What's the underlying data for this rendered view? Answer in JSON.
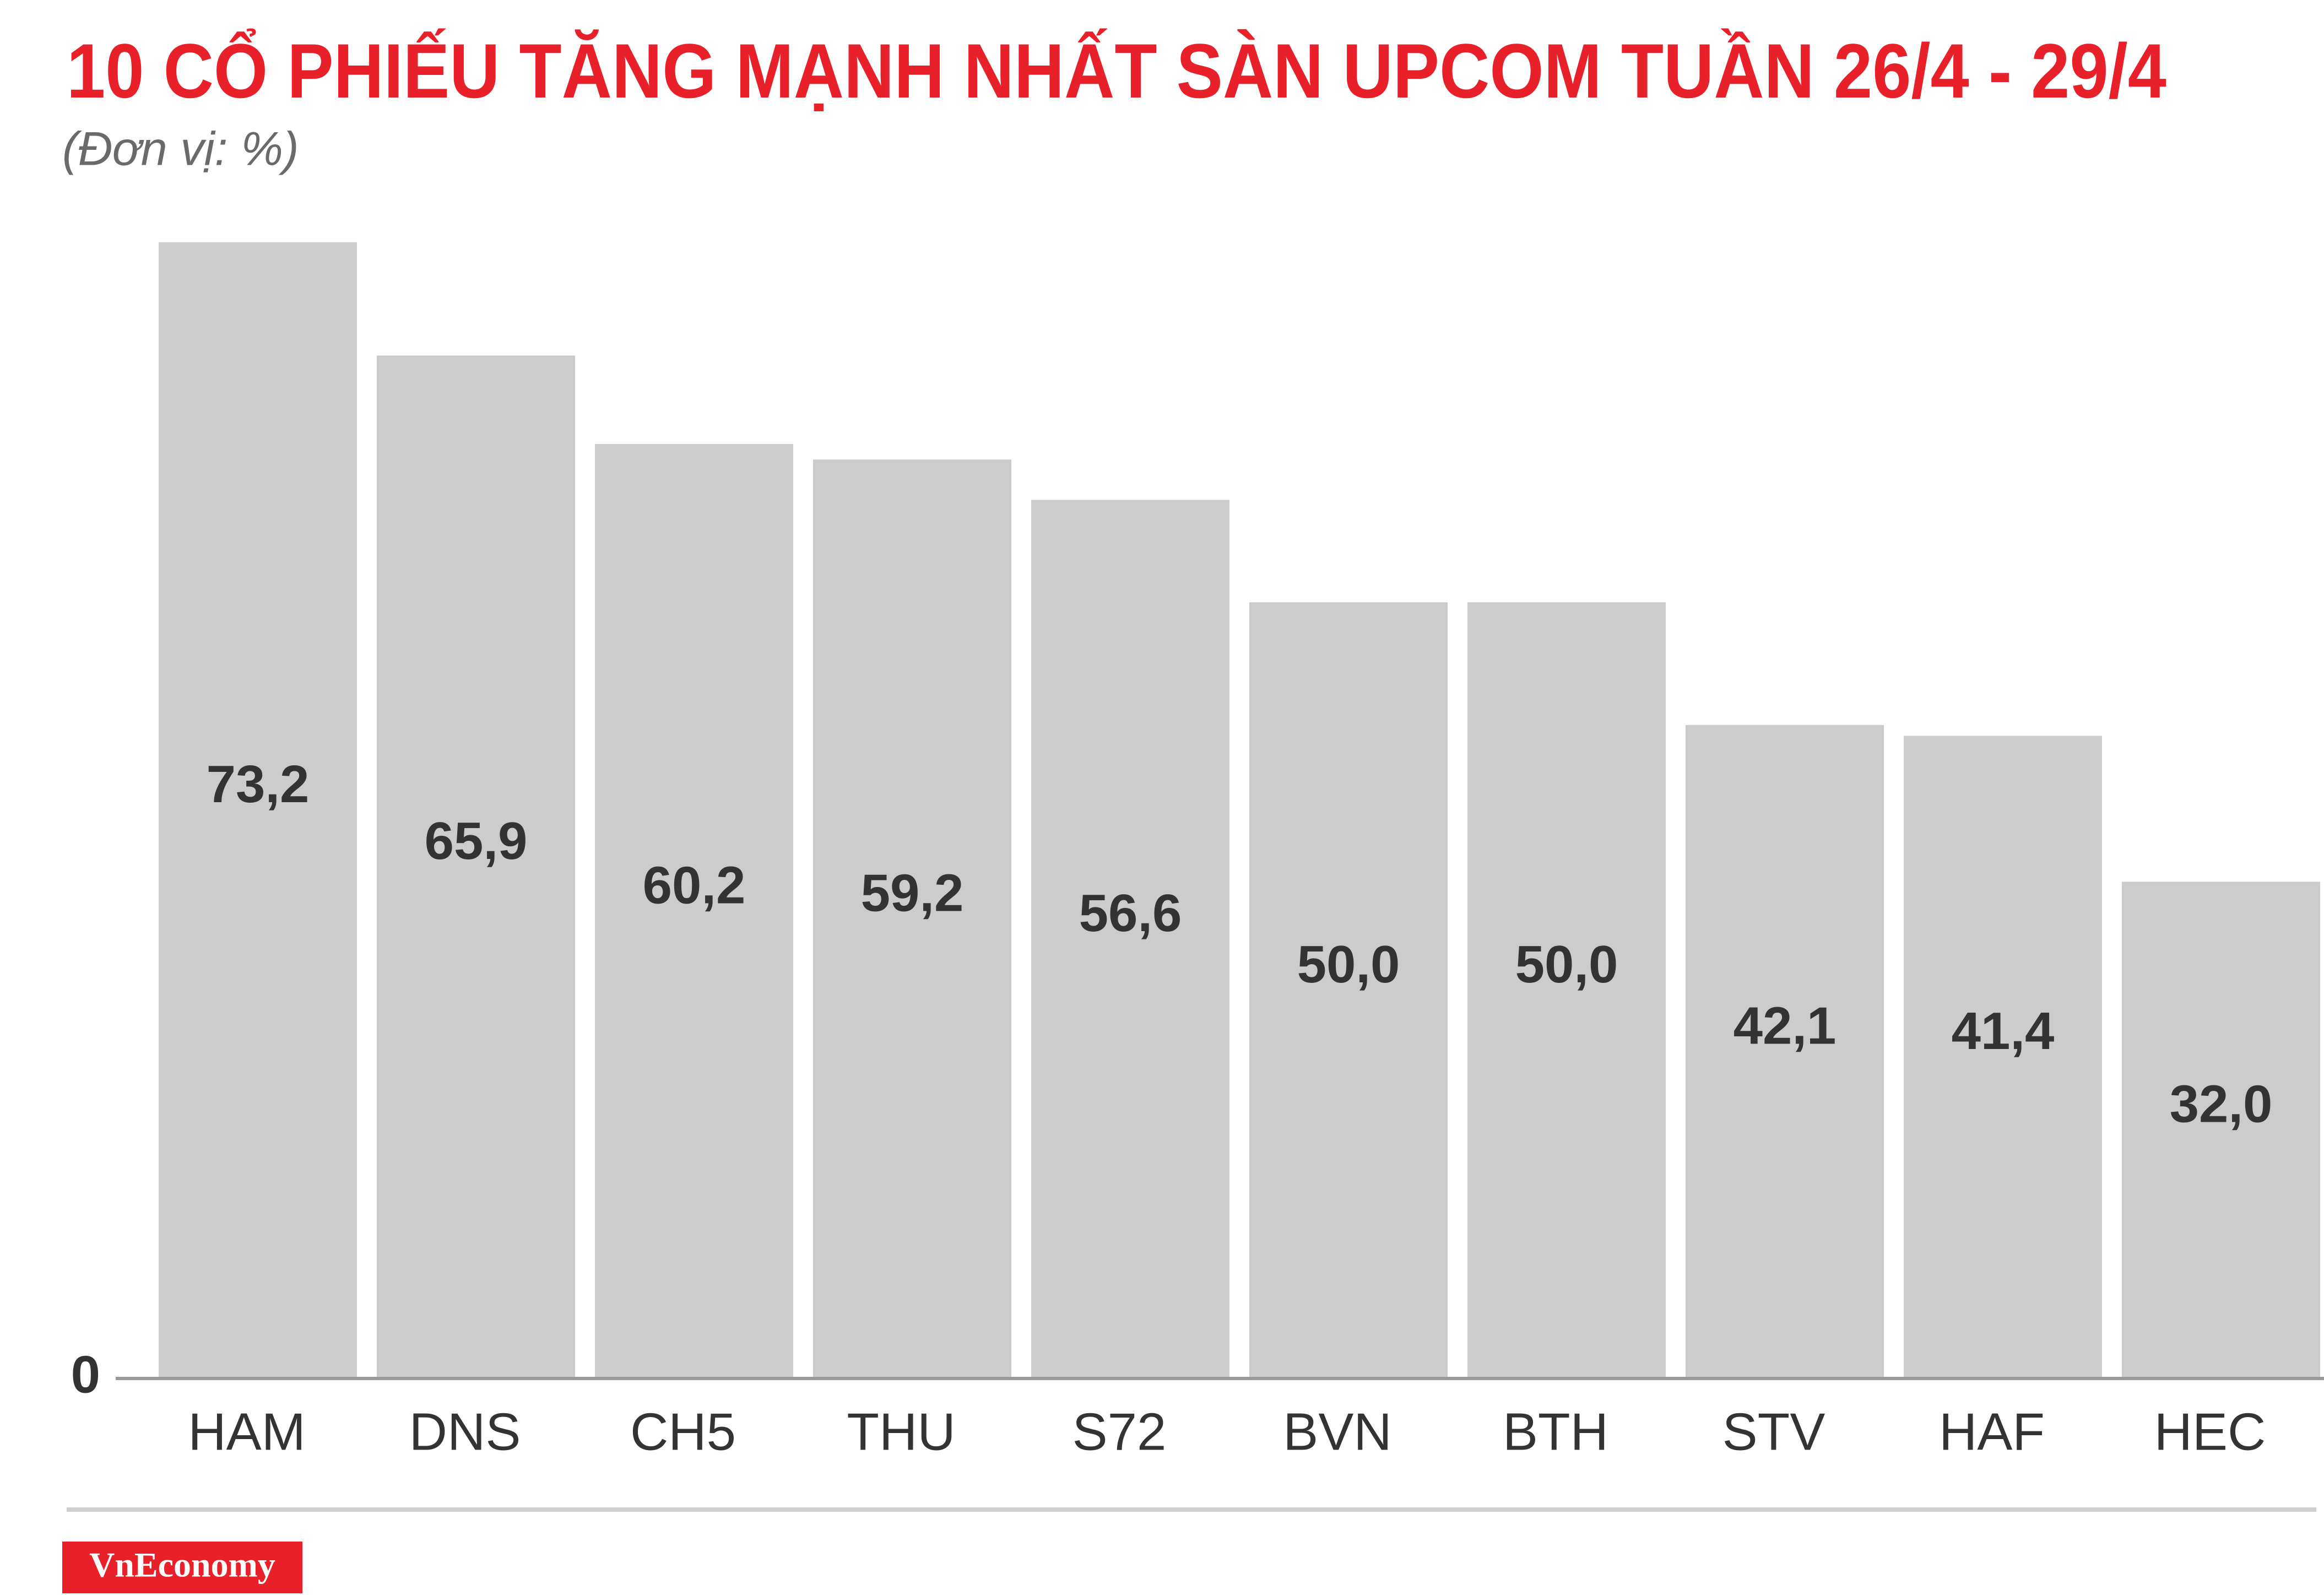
{
  "chart_data": {
    "type": "bar",
    "title": "10 CỔ PHIẾU TĂNG MẠNH NHẤT SÀN UPCOM TUẦN 26/4 - 29/4",
    "subtitle": "(Đơn vị: %)",
    "categories": [
      "HAM",
      "DNS",
      "CH5",
      "THU",
      "S72",
      "BVN",
      "BTH",
      "STV",
      "HAF",
      "HEC"
    ],
    "values": [
      73.2,
      65.9,
      60.2,
      59.2,
      56.6,
      50.0,
      50.0,
      42.1,
      41.4,
      32.0
    ],
    "value_labels": [
      "73,2",
      "65,9",
      "60,2",
      "59,2",
      "56,6",
      "50,0",
      "50,0",
      "42,1",
      "41,4",
      "32,0"
    ],
    "color": "#cccccc",
    "ylim": [
      0,
      80
    ],
    "yticks": [
      0
    ],
    "grid": false,
    "source": "VnEconomy"
  }
}
